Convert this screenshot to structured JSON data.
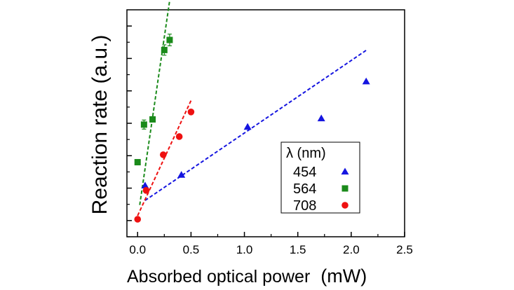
{
  "chart_data": {
    "type": "scatter",
    "title": "",
    "xlabel": "Absorbed optical power",
    "xlabel_unit": "(mW)",
    "ylabel": "Reaction rate (a.u.)",
    "xlim": [
      -0.1,
      2.5
    ],
    "ylim": [
      -0.5,
      6.5
    ],
    "x_ticks": [
      0.0,
      0.5,
      1.0,
      1.5,
      2.0,
      2.5
    ],
    "x_tick_labels": [
      "0.0",
      "0.5",
      "1.0",
      "1.5",
      "2.0",
      "2.5"
    ],
    "y_ticks": [
      0,
      1,
      2,
      3,
      4,
      5,
      6
    ],
    "y_tick_labels_visible": false,
    "grid": false,
    "legend": {
      "title": "λ (nm)",
      "position": "right"
    },
    "series": [
      {
        "name": "454",
        "color": "#1515e0",
        "marker": "triangle",
        "points": [
          {
            "x": 0.07,
            "y": 1.08
          },
          {
            "x": 0.41,
            "y": 1.41
          },
          {
            "x": 1.03,
            "y": 2.89
          },
          {
            "x": 1.72,
            "y": 3.15
          },
          {
            "x": 2.14,
            "y": 4.29
          }
        ],
        "fit": {
          "x": [
            0.07,
            2.14
          ],
          "y": [
            0.62,
            5.25
          ]
        }
      },
      {
        "name": "564",
        "color": "#1a8a1a",
        "marker": "square",
        "points": [
          {
            "x": 0.0,
            "y": 1.8
          },
          {
            "x": 0.06,
            "y": 2.96,
            "err": 0.14
          },
          {
            "x": 0.14,
            "y": 3.12
          },
          {
            "x": 0.25,
            "y": 5.26,
            "err": 0.16
          },
          {
            "x": 0.3,
            "y": 5.57,
            "err": 0.18
          }
        ],
        "fit": {
          "x": [
            0.02,
            0.3
          ],
          "y": [
            0.48,
            6.78
          ]
        }
      },
      {
        "name": "708",
        "color": "#ee1111",
        "marker": "circle",
        "points": [
          {
            "x": 0.0,
            "y": 0.04
          },
          {
            "x": 0.08,
            "y": 0.93
          },
          {
            "x": 0.24,
            "y": 2.03
          },
          {
            "x": 0.39,
            "y": 2.59
          },
          {
            "x": 0.5,
            "y": 3.35
          }
        ],
        "fit": {
          "x": [
            0.0,
            0.5
          ],
          "y": [
            0.15,
            3.7
          ]
        }
      }
    ]
  }
}
